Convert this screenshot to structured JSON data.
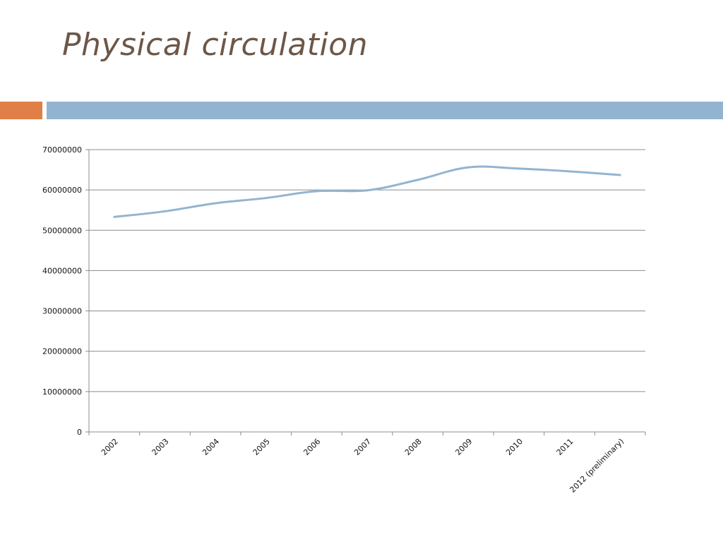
{
  "slide": {
    "title": "Physical circulation",
    "accent_left_color": "#e07f47",
    "accent_right_color": "#93b4d0",
    "title_color": "#6d5747"
  },
  "chart_data": {
    "type": "line",
    "title": "",
    "xlabel": "",
    "ylabel": "",
    "categories": [
      "2002",
      "2003",
      "2004",
      "2005",
      "2006",
      "2007",
      "2008",
      "2009",
      "2010",
      "2011",
      "2012 (preliminary)"
    ],
    "series": [
      {
        "values": [
          53300000,
          54700000,
          56700000,
          58000000,
          59700000,
          59900000,
          62500000,
          65600000,
          65300000,
          64600000,
          63700000
        ],
        "color": "#93b4d0"
      }
    ],
    "ylim": [
      0,
      70000000
    ],
    "yticks": [
      0,
      10000000,
      20000000,
      30000000,
      40000000,
      50000000,
      60000000,
      70000000
    ],
    "grid": true,
    "legend": "none"
  }
}
